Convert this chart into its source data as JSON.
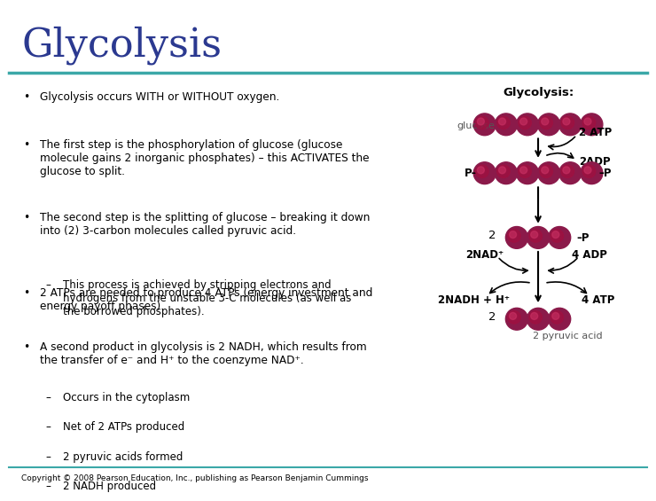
{
  "title": "Glycolysis",
  "title_color": "#2B3990",
  "title_fontsize": 32,
  "separator_color": "#3BA8A8",
  "bg_color": "#FFFFFF",
  "text_color": "#000000",
  "bullet_color": "#000000",
  "bullet_points": [
    "Glycolysis occurs WITH or WITHOUT oxygen.",
    "The first step is the phosphorylation of glucose (glucose\nmolecule gains 2 inorganic phosphates) – this ACTIVATES the\nglucose to split.",
    "The second step is the splitting of glucose – breaking it down\ninto (2) 3-carbon molecules called pyruvic acid.",
    "2 ATPs are needed to produce 4 ATPs (energy investment and\nenergy payoff phases).",
    "A second product in glycolysis is 2 NADH, which results from\nthe transfer of e⁻ and H⁺ to the coenzyme NAD⁺."
  ],
  "sub_bullets": {
    "2": [
      "This process is achieved by stripping electrons and\nhydrogens from the unstable 3-C molecules (as well as\nthe borrowed phosphates)."
    ],
    "4": [
      "Occurs in the cytoplasm",
      "Net of 2 ATPs produced",
      "2 pyruvic acids formed",
      "2 NADH produced"
    ]
  },
  "copyright": "Copyright © 2008 Pearson Education, Inc., publishing as Pearson Benjamin Cummings",
  "diagram_title": "Glycolysis:",
  "molecule_color": "#8B1A4A",
  "arrow_color": "#000000",
  "label_fontsize": 8.5
}
